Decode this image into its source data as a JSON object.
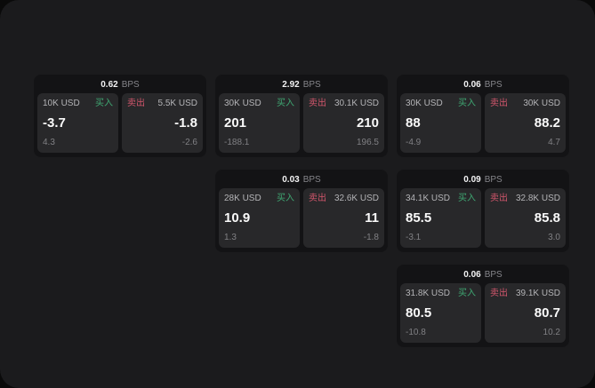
{
  "theme": {
    "outer_bg": "#0a0a0a",
    "panel_bg": "#1b1b1d",
    "card_bg": "#131315",
    "tile_bg": "#28282a",
    "buy_green": "#3fa873",
    "sell_red": "#d2566c",
    "primary_text": "#fafafa",
    "muted_text": "#808084"
  },
  "labels": {
    "bps": "BPS",
    "buy": "买入",
    "sell": "卖出"
  },
  "cards": [
    {
      "row": 1,
      "col": 1,
      "bps": "0.62",
      "buy": {
        "size": "10K USD",
        "price": "-3.7",
        "delta": "4.3"
      },
      "sell": {
        "size": "5.5K USD",
        "price": "-1.8",
        "delta": "-2.6"
      }
    },
    {
      "row": 1,
      "col": 2,
      "bps": "2.92",
      "buy": {
        "size": "30K USD",
        "price": "201",
        "delta": "-188.1"
      },
      "sell": {
        "size": "30.1K USD",
        "price": "210",
        "delta": "196.5"
      }
    },
    {
      "row": 1,
      "col": 3,
      "bps": "0.06",
      "buy": {
        "size": "30K USD",
        "price": "88",
        "delta": "-4.9"
      },
      "sell": {
        "size": "30K USD",
        "price": "88.2",
        "delta": "4.7"
      }
    },
    {
      "row": 2,
      "col": 2,
      "bps": "0.03",
      "buy": {
        "size": "28K USD",
        "price": "10.9",
        "delta": "1.3"
      },
      "sell": {
        "size": "32.6K USD",
        "price": "11",
        "delta": "-1.8"
      }
    },
    {
      "row": 2,
      "col": 3,
      "bps": "0.09",
      "buy": {
        "size": "34.1K USD",
        "price": "85.5",
        "delta": "-3.1"
      },
      "sell": {
        "size": "32.8K USD",
        "price": "85.8",
        "delta": "3.0"
      }
    },
    {
      "row": 3,
      "col": 3,
      "bps": "0.06",
      "buy": {
        "size": "31.8K USD",
        "price": "80.5",
        "delta": "-10.8"
      },
      "sell": {
        "size": "39.1K USD",
        "price": "80.7",
        "delta": "10.2"
      }
    }
  ]
}
